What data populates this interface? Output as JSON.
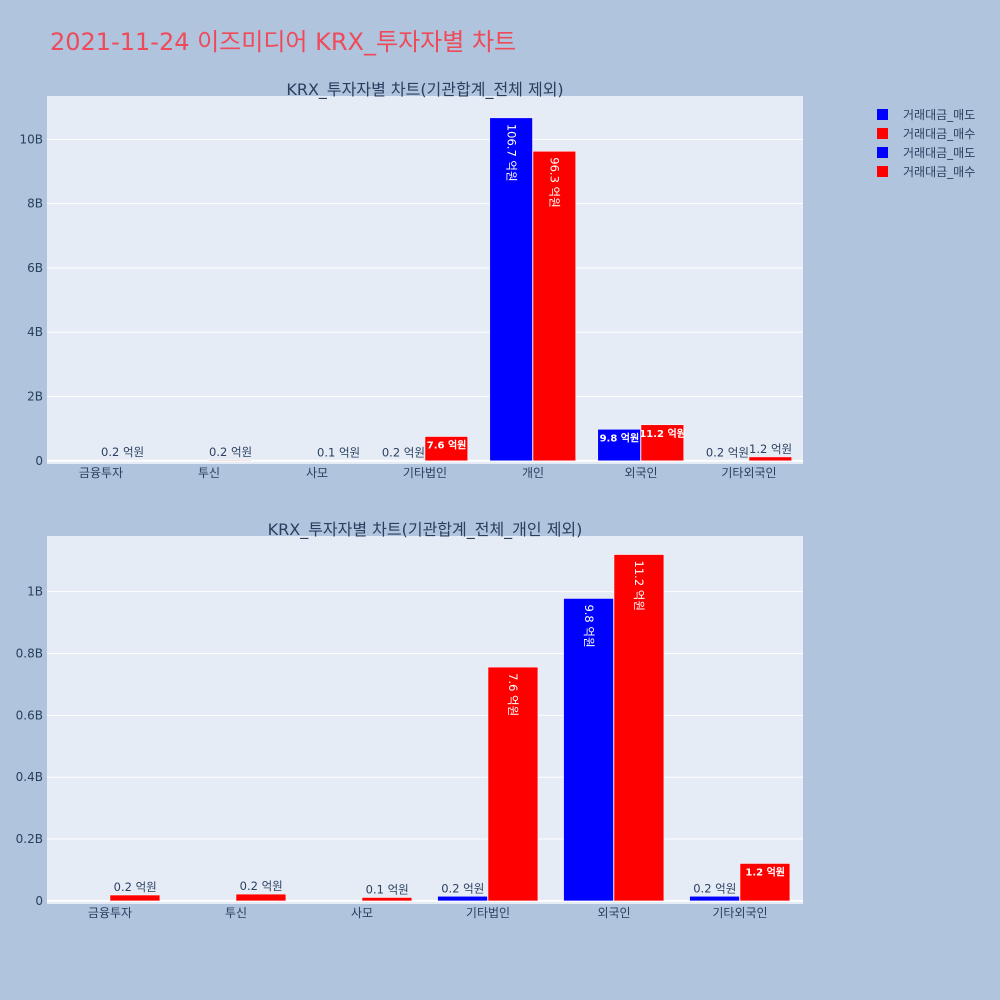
{
  "title": "2021-11-24 이즈미디어 KRX_투자자별 차트",
  "colors": {
    "sell": "#0000ff",
    "buy": "#ff0000",
    "background": "#b0c4de",
    "plot_bg": "#e5ecf6",
    "title": "#ef4a5a"
  },
  "legend": [
    "거래대금_매도",
    "거래대금_매수",
    "거래대금_매도",
    "거래대금_매수"
  ],
  "chart_data": [
    {
      "type": "bar",
      "title": "KRX_투자자별 차트(기관합계_전체 제외)",
      "categories": [
        "금융투자",
        "투신",
        "사모",
        "기타법인",
        "개인",
        "외국인",
        "기타외국인"
      ],
      "series": [
        {
          "name": "거래대금_매도",
          "color": "#0000ff",
          "values": [
            0,
            0,
            0,
            15000000,
            10670000000,
            980000000,
            15000000
          ],
          "labels": [
            "",
            "",
            "",
            "0.2 억원",
            "106.7 억원",
            "9.8 억원",
            "0.2 억원"
          ]
        },
        {
          "name": "거래대금_매수",
          "color": "#ff0000",
          "values": [
            17000000,
            21000000,
            9000000,
            755000000,
            9630000000,
            1120000000,
            120000000
          ],
          "labels": [
            "0.2 억원",
            "0.2 억원",
            "0.1 억원",
            "7.6 억원",
            "96.3 억원",
            "11.2 억원",
            "1.2 억원"
          ]
        }
      ],
      "ylim": [
        -100000000,
        11350000000
      ],
      "yticks": [
        0,
        2000000000,
        4000000000,
        6000000000,
        8000000000,
        10000000000
      ],
      "ytick_labels": [
        "0",
        "2B",
        "4B",
        "6B",
        "8B",
        "10B"
      ],
      "grid": true
    },
    {
      "type": "bar",
      "title": "KRX_투자자별 차트(기관합계_전체_개인 제외)",
      "categories": [
        "금융투자",
        "투신",
        "사모",
        "기타법인",
        "외국인",
        "기타외국인"
      ],
      "series": [
        {
          "name": "거래대금_매도",
          "color": "#0000ff",
          "values": [
            0,
            0,
            0,
            15000000,
            978000000,
            15000000
          ],
          "labels": [
            "",
            "",
            "",
            "0.2 억원",
            "9.8 억원",
            "0.2 억원"
          ]
        },
        {
          "name": "거래대금_매수",
          "color": "#ff0000",
          "values": [
            19000000,
            22000000,
            11000000,
            756000000,
            1120000000,
            121000000
          ],
          "labels": [
            "0.2 억원",
            "0.2 억원",
            "0.1 억원",
            "7.6 억원",
            "11.2 억원",
            "1.2 억원"
          ]
        }
      ],
      "ylim": [
        -10000000,
        1180000000
      ],
      "yticks": [
        0,
        200000000,
        400000000,
        600000000,
        800000000,
        1000000000
      ],
      "ytick_labels": [
        "0",
        "0.2B",
        "0.4B",
        "0.6B",
        "0.8B",
        "1B"
      ],
      "grid": true
    }
  ]
}
